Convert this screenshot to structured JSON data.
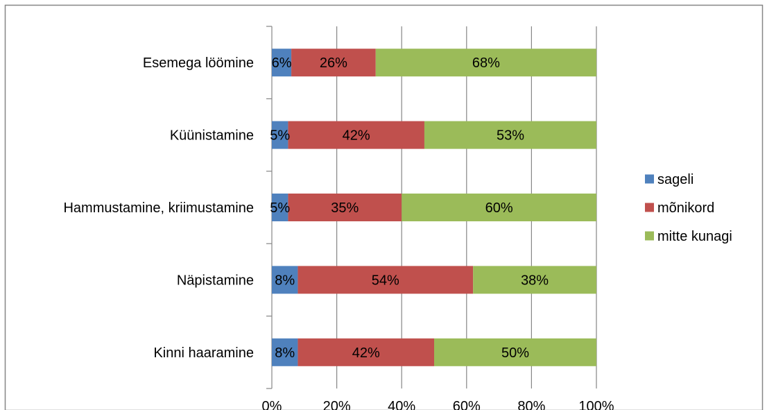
{
  "chart_data": {
    "type": "bar",
    "orientation": "horizontal",
    "stacked": "percent",
    "categories": [
      "Esemega löömine",
      "Küünistamine",
      "Hammustamine, kriimustamine",
      "Näpistamine",
      "Kinni haaramine"
    ],
    "series": [
      {
        "name": "sageli",
        "color": "#4F81BD",
        "values": [
          6,
          5,
          5,
          8,
          8
        ],
        "labels": [
          "6%",
          "5%",
          "5%",
          "8%",
          "8%"
        ]
      },
      {
        "name": "mõnikord",
        "color": "#C0504D",
        "values": [
          26,
          42,
          35,
          54,
          42
        ],
        "labels": [
          "26%",
          "42%",
          "35%",
          "54%",
          "42%"
        ]
      },
      {
        "name": "mitte kunagi",
        "color": "#9BBB59",
        "values": [
          68,
          53,
          60,
          38,
          50
        ],
        "labels": [
          "68%",
          "53%",
          "60%",
          "38%",
          "50%"
        ]
      }
    ],
    "xlim": [
      0,
      100
    ],
    "x_ticks": [
      "0%",
      "20%",
      "40%",
      "60%",
      "80%",
      "100%"
    ],
    "grid": "vertical",
    "legend_position": "right"
  }
}
